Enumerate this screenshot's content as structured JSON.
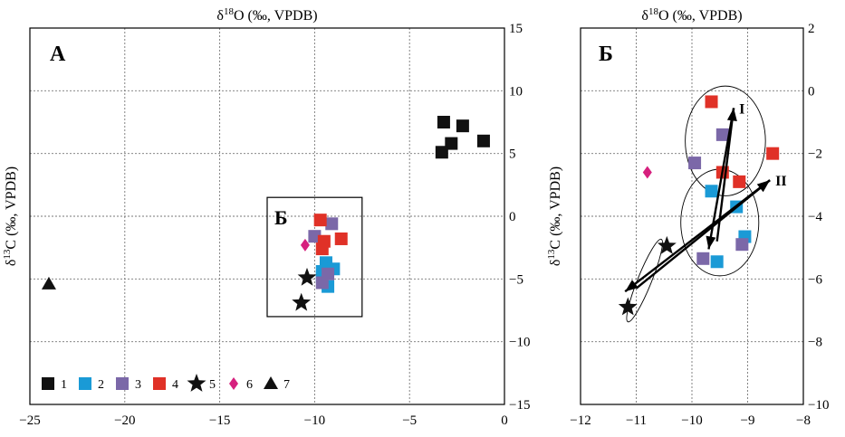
{
  "chart_data": [
    {
      "type": "scatter",
      "panel_label": "А",
      "x_title_main": "δ",
      "x_title_sup": "18",
      "x_title_rest": "O (‰, VPDB)",
      "y_title_main": "δ",
      "y_title_sup": "13",
      "y_title_rest": "C (‰, VPDB)",
      "xlim": [
        -25,
        0
      ],
      "ylim": [
        -15,
        15
      ],
      "x_ticks": [
        -25,
        -20,
        -15,
        -10,
        -5,
        0
      ],
      "y_ticks": [
        15,
        10,
        5,
        0,
        -5,
        -10,
        -15
      ],
      "grid": true,
      "series": [
        {
          "name": "1",
          "marker": "square",
          "color": "#111111",
          "points": [
            [
              -3.2,
              7.5
            ],
            [
              -2.2,
              7.2
            ],
            [
              -2.8,
              5.8
            ],
            [
              -3.3,
              5.1
            ],
            [
              -1.1,
              6.0
            ]
          ]
        },
        {
          "name": "2",
          "marker": "square",
          "color": "#1a9ad6",
          "points": [
            [
              -9.4,
              -3.7
            ],
            [
              -9.6,
              -4.4
            ],
            [
              -9.0,
              -4.2
            ],
            [
              -9.3,
              -5.6
            ],
            [
              -9.6,
              -4.8
            ]
          ]
        },
        {
          "name": "3",
          "marker": "square",
          "color": "#7b68a8",
          "points": [
            [
              -9.1,
              -0.6
            ],
            [
              -10.0,
              -1.6
            ],
            [
              -9.6,
              -5.3
            ],
            [
              -9.3,
              -4.6
            ]
          ]
        },
        {
          "name": "4",
          "marker": "square",
          "color": "#e03127",
          "points": [
            [
              -9.7,
              -0.3
            ],
            [
              -8.6,
              -1.8
            ],
            [
              -9.5,
              -2.0
            ],
            [
              -9.6,
              -2.6
            ]
          ]
        },
        {
          "name": "5",
          "marker": "star",
          "color": "#111111",
          "points": [
            [
              -10.4,
              -4.9
            ],
            [
              -10.7,
              -6.9
            ]
          ]
        },
        {
          "name": "6",
          "marker": "diamond",
          "color": "#d6207e",
          "points": [
            [
              -10.5,
              -2.3
            ]
          ]
        },
        {
          "name": "7",
          "marker": "triangle",
          "color": "#111111",
          "points": [
            [
              -24.0,
              -5.4
            ]
          ]
        }
      ],
      "inset_box": {
        "label": "Б",
        "x_range": [
          -12.5,
          -7.5
        ],
        "y_range": [
          -8,
          1.5
        ]
      },
      "legend": {
        "position": "bottom-left",
        "labels": [
          "1",
          "2",
          "3",
          "4",
          "5",
          "6",
          "7"
        ]
      }
    },
    {
      "type": "scatter",
      "panel_label": "Б",
      "x_title_main": "δ",
      "x_title_sup": "18",
      "x_title_rest": "O (‰, VPDB)",
      "y_title_main": "δ",
      "y_title_sup": "13",
      "y_title_rest": "C (‰, VPDB)",
      "xlim": [
        -12,
        -8
      ],
      "ylim": [
        -10,
        2
      ],
      "x_ticks": [
        -12,
        -11,
        -10,
        -9,
        -8
      ],
      "y_ticks": [
        2,
        0,
        -2,
        -4,
        -6,
        -8,
        -10
      ],
      "grid": true,
      "series": [
        {
          "name": "2",
          "marker": "square",
          "color": "#1a9ad6",
          "points": [
            [
              -9.65,
              -3.2
            ],
            [
              -9.2,
              -3.7
            ],
            [
              -9.05,
              -4.65
            ],
            [
              -9.55,
              -5.45
            ]
          ]
        },
        {
          "name": "3",
          "marker": "square",
          "color": "#7b68a8",
          "points": [
            [
              -9.45,
              -1.4
            ],
            [
              -9.95,
              -2.3
            ],
            [
              -9.8,
              -5.35
            ],
            [
              -9.1,
              -4.9
            ]
          ]
        },
        {
          "name": "4",
          "marker": "square",
          "color": "#e03127",
          "points": [
            [
              -9.65,
              -0.35
            ],
            [
              -8.55,
              -2.0
            ],
            [
              -9.45,
              -2.6
            ],
            [
              -9.15,
              -2.9
            ]
          ]
        },
        {
          "name": "5",
          "marker": "star",
          "color": "#111111",
          "points": [
            [
              -10.45,
              -4.95
            ],
            [
              -11.15,
              -6.9
            ]
          ]
        },
        {
          "name": "6",
          "marker": "diamond",
          "color": "#d6207e",
          "points": [
            [
              -10.8,
              -2.6
            ]
          ]
        }
      ],
      "ellipses": [
        {
          "center": [
            -9.4,
            -1.6
          ],
          "radii": [
            0.72,
            1.75
          ]
        },
        {
          "center": [
            -9.5,
            -4.2
          ],
          "radii": [
            0.7,
            1.7
          ],
          "rotation": 0
        },
        {
          "center": [
            -10.85,
            -6.05
          ],
          "radii": [
            0.8,
            0.22
          ],
          "rotation": 68
        }
      ],
      "arrows": [
        {
          "label": "I",
          "from": [
            -9.55,
            -4.8
          ],
          "to": [
            -9.25,
            -0.55
          ]
        },
        {
          "label": "",
          "from": [
            -9.25,
            -0.55
          ],
          "to": [
            -9.7,
            -5.05
          ]
        },
        {
          "label": "II",
          "from": [
            -11.0,
            -6.3
          ],
          "to": [
            -8.6,
            -2.85
          ]
        },
        {
          "label": "",
          "from": [
            -8.6,
            -2.85
          ],
          "to": [
            -11.2,
            -6.4
          ]
        }
      ]
    }
  ]
}
